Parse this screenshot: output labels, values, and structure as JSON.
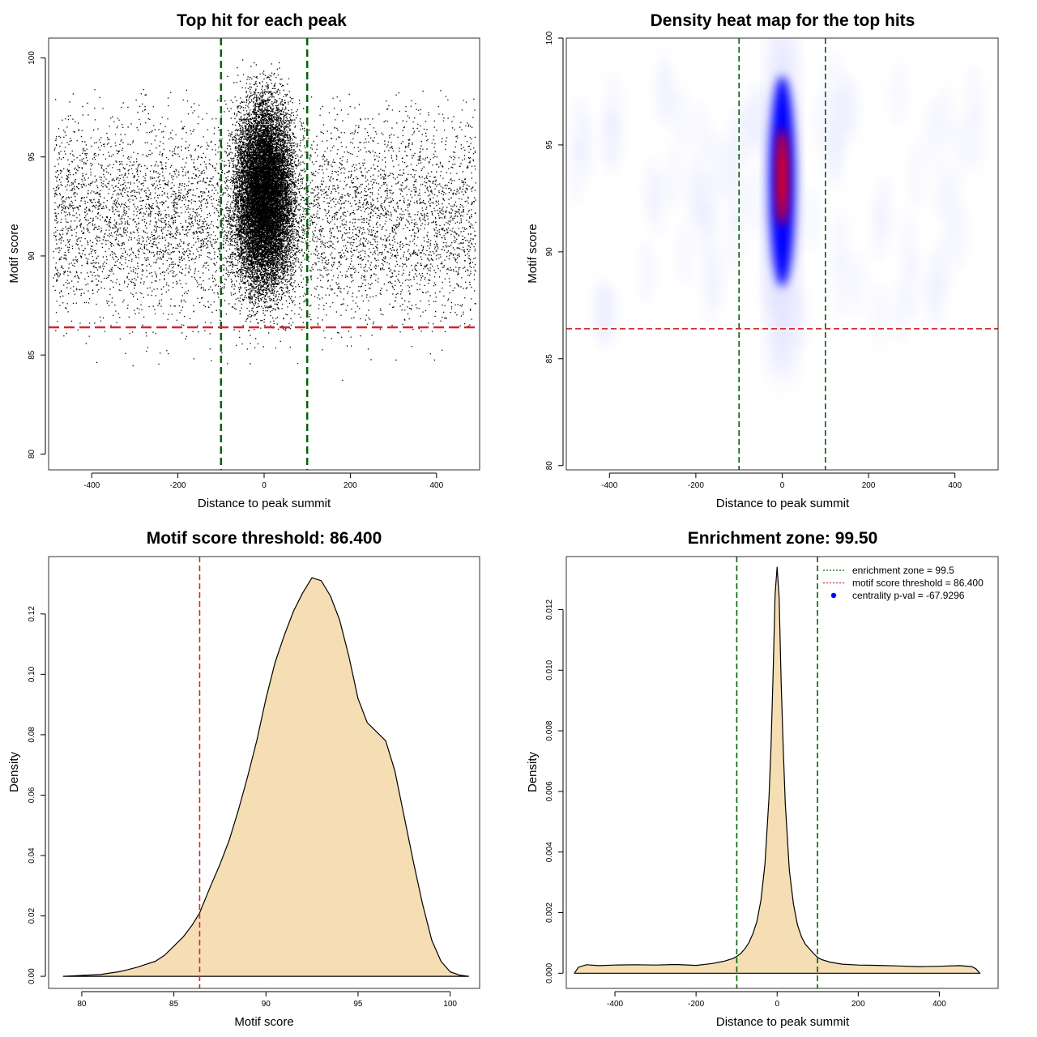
{
  "chart_data": [
    {
      "type": "scatter",
      "title": "Top hit for each peak",
      "xlabel": "Distance to peak summit",
      "ylabel": "Motif score",
      "xlim": [
        -500,
        500
      ],
      "ylim": [
        79.2,
        101
      ],
      "xticks": [
        -400,
        -200,
        0,
        200,
        400
      ],
      "yticks": [
        80,
        85,
        90,
        95,
        100
      ],
      "vlines": [
        -100,
        100
      ],
      "vline_color": "#006400",
      "hline": 86.4,
      "hline_color": "#d62728",
      "point_color": "#000000",
      "sample_points": {
        "background": {
          "x_range": [
            -490,
            490
          ],
          "y_range": [
            80.5,
            98.5
          ],
          "y_center": 92
        },
        "center": {
          "x_range": [
            -100,
            100
          ],
          "y_range": [
            82,
            100
          ],
          "y_center": 93
        }
      }
    },
    {
      "type": "heatmap",
      "title": "Density heat map for the top hits",
      "xlabel": "Distance to peak summit",
      "ylabel": "Motif score",
      "xlim": [
        -500,
        500
      ],
      "ylim": [
        79.8,
        100
      ],
      "xticks": [
        -400,
        -200,
        0,
        200,
        400
      ],
      "yticks": [
        80,
        85,
        90,
        95,
        100
      ],
      "vlines": [
        -100,
        100
      ],
      "vline_color": "#006400",
      "hline": 86.4,
      "hline_color": "#d62728",
      "hotspot": {
        "x": 0,
        "y": 93.5
      },
      "colors": [
        "#ffffff",
        "#0000ff",
        "#ff0000"
      ]
    },
    {
      "type": "area",
      "title": "Motif score threshold: 86.400",
      "xlabel": "Motif score",
      "ylabel": "Density",
      "xlim": [
        78.2,
        101.6
      ],
      "ylim": [
        -0.004,
        0.139
      ],
      "xticks": [
        80,
        85,
        90,
        95,
        100
      ],
      "yticks": [
        0.0,
        0.02,
        0.04,
        0.06,
        0.08,
        0.1,
        0.12
      ],
      "ytick_labels": [
        "0.00",
        "0.02",
        "0.04",
        "0.06",
        "0.08",
        "0.10",
        "0.12"
      ],
      "vline": 86.4,
      "vline_color": "#d62728",
      "fill": "#f5deb3",
      "x": [
        79,
        80,
        81,
        82,
        82.5,
        83,
        83.5,
        84,
        84.5,
        85,
        85.5,
        86,
        86.4,
        87,
        87.5,
        88,
        88.5,
        89,
        89.5,
        90,
        90.5,
        91,
        91.5,
        92,
        92.5,
        93,
        93.5,
        94,
        94.5,
        95,
        95.5,
        96,
        96.5,
        97,
        97.5,
        98,
        98.5,
        99,
        99.5,
        100,
        100.5,
        101
      ],
      "values": [
        0.0,
        0.0003,
        0.0006,
        0.0015,
        0.0022,
        0.003,
        0.004,
        0.005,
        0.007,
        0.01,
        0.013,
        0.017,
        0.021,
        0.03,
        0.037,
        0.045,
        0.055,
        0.066,
        0.078,
        0.092,
        0.104,
        0.113,
        0.121,
        0.127,
        0.132,
        0.131,
        0.126,
        0.118,
        0.106,
        0.092,
        0.084,
        0.081,
        0.078,
        0.068,
        0.053,
        0.038,
        0.024,
        0.012,
        0.005,
        0.0015,
        0.0004,
        0.0
      ]
    },
    {
      "type": "area",
      "title": "Enrichment zone: 99.50",
      "xlabel": "Distance to peak summit",
      "ylabel": "Density",
      "xlim": [
        -520,
        545
      ],
      "ylim": [
        -0.0005,
        0.01375
      ],
      "xticks": [
        -400,
        -200,
        0,
        200,
        400
      ],
      "yticks": [
        0.0,
        0.002,
        0.004,
        0.006,
        0.008,
        0.01,
        0.012
      ],
      "ytick_labels": [
        "0.000",
        "0.002",
        "0.004",
        "0.006",
        "0.008",
        "0.010",
        "0.012"
      ],
      "vlines": [
        -99.5,
        99.5
      ],
      "vline_color": "#006400",
      "fill": "#f5deb3",
      "x": [
        -500,
        -490,
        -470,
        -440,
        -400,
        -350,
        -300,
        -250,
        -200,
        -160,
        -130,
        -110,
        -100,
        -90,
        -80,
        -70,
        -60,
        -50,
        -40,
        -30,
        -20,
        -15,
        -10,
        -5,
        0,
        5,
        10,
        15,
        20,
        30,
        40,
        50,
        60,
        70,
        80,
        90,
        100,
        110,
        130,
        160,
        200,
        250,
        300,
        350,
        400,
        450,
        480,
        490,
        500
      ],
      "values": [
        0.0,
        0.0002,
        0.00028,
        0.00025,
        0.00027,
        0.00028,
        0.00027,
        0.00029,
        0.00026,
        0.00032,
        0.0004,
        0.00048,
        0.00055,
        0.00065,
        0.0008,
        0.001,
        0.0013,
        0.0017,
        0.0024,
        0.0036,
        0.0058,
        0.0075,
        0.0098,
        0.0125,
        0.0134,
        0.0124,
        0.0096,
        0.0074,
        0.0056,
        0.0034,
        0.0023,
        0.0016,
        0.0012,
        0.00095,
        0.0008,
        0.00065,
        0.00052,
        0.00045,
        0.00037,
        0.0003,
        0.00027,
        0.00026,
        0.00024,
        0.00022,
        0.00023,
        0.00025,
        0.00022,
        0.00015,
        0.0
      ],
      "legend": [
        {
          "label": "enrichment zone = 99.5",
          "color": "#006400",
          "kind": "dotted-line"
        },
        {
          "label": "motif score threshold = 86.400",
          "color": "#d62728",
          "kind": "dotted-line"
        },
        {
          "label": "centrality p-val = -67.9296",
          "color": "#0000ff",
          "kind": "dot"
        }
      ]
    }
  ]
}
